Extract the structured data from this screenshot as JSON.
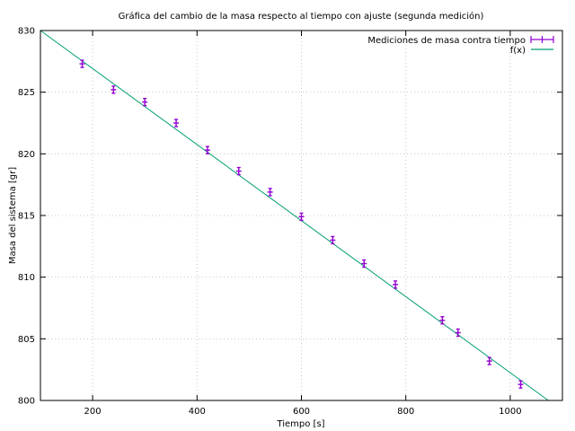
{
  "chart_data": {
    "type": "scatter",
    "title": "Gráfica del cambio de la masa respecto al tiempo con ajuste (segunda medición)",
    "xlabel": "Tiempo [s]",
    "ylabel": "Masa del sistema [gr]",
    "xlim": [
      100,
      1100
    ],
    "ylim": [
      800,
      830
    ],
    "x_ticks": [
      200,
      400,
      600,
      800,
      1000
    ],
    "y_ticks": [
      800,
      805,
      810,
      815,
      820,
      825,
      830
    ],
    "grid": true,
    "legend_position": "top-right",
    "series": [
      {
        "name": "Mediciones de masa contra tiempo",
        "type": "points-with-errorbars",
        "color": "#9400d3",
        "x": [
          180,
          240,
          300,
          360,
          420,
          480,
          540,
          600,
          660,
          720,
          780,
          870,
          900,
          960,
          1020
        ],
        "y": [
          827.3,
          825.2,
          824.2,
          822.5,
          820.3,
          818.6,
          816.9,
          814.9,
          813.0,
          811.1,
          809.4,
          806.5,
          805.5,
          803.2,
          801.3
        ]
      },
      {
        "name": "f(x)",
        "type": "line",
        "color": "#009e73",
        "x": [
          100,
          1073
        ],
        "y": [
          830,
          800
        ]
      }
    ]
  }
}
